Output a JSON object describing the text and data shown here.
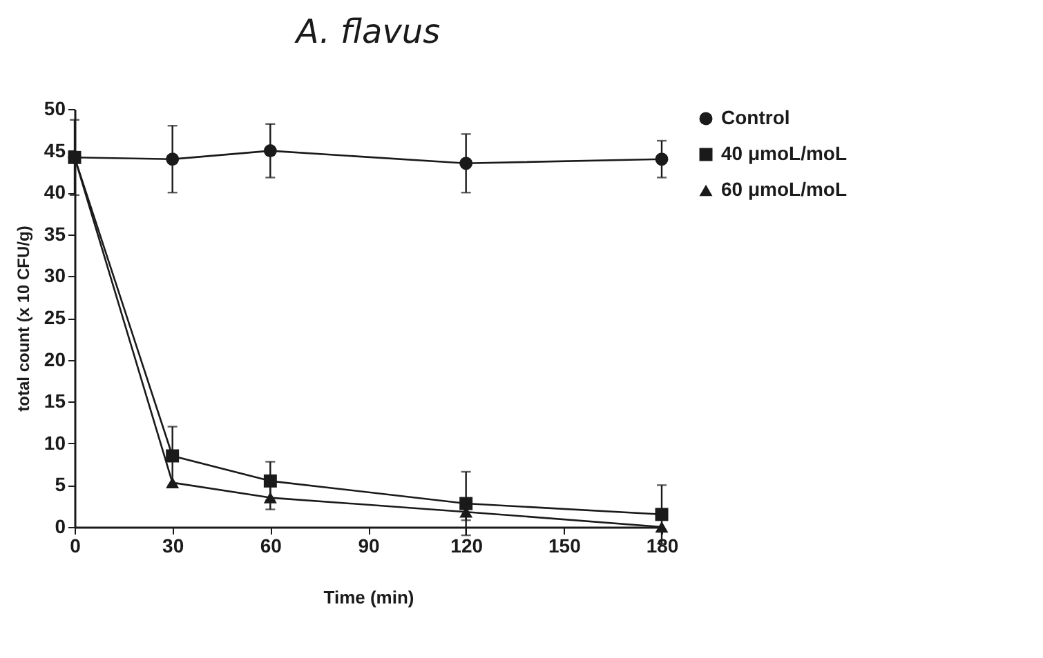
{
  "chart_data": {
    "type": "line",
    "title": "A. flavus",
    "xlabel": "Time (min)",
    "ylabel": "total count (x 10 CFU/g)",
    "x": [
      0,
      30,
      60,
      120,
      180
    ],
    "series": [
      {
        "name": "Control",
        "color": "#1a1a1a",
        "marker": "circle",
        "values": [
          44.2,
          44,
          45,
          43.5,
          44
        ],
        "errors": [
          4.5,
          4,
          3.2,
          3.5,
          2.2
        ]
      },
      {
        "name": "40 μmoL/moL",
        "color": "#1a1a1a",
        "marker": "square",
        "values": [
          44.2,
          8.5,
          5.5,
          2.8,
          1.5
        ],
        "errors": [
          null,
          3.5,
          2.3,
          3.8,
          3.5
        ]
      },
      {
        "name": "60 μmoL/moL",
        "color": "#1a1a1a",
        "marker": "triangle",
        "values": [
          44.2,
          5.3,
          3.5,
          1.8,
          0
        ],
        "errors": [
          null,
          null,
          1.4,
          1,
          null
        ]
      }
    ],
    "xlim": [
      0,
      180
    ],
    "xticks": [
      0,
      30,
      60,
      90,
      120,
      150,
      180
    ],
    "ylim": [
      0,
      50
    ],
    "yticks": [
      0,
      5,
      10,
      15,
      20,
      25,
      30,
      35,
      40,
      45,
      50
    ],
    "grid": false,
    "legend": "top right",
    "line_style": "solid"
  }
}
